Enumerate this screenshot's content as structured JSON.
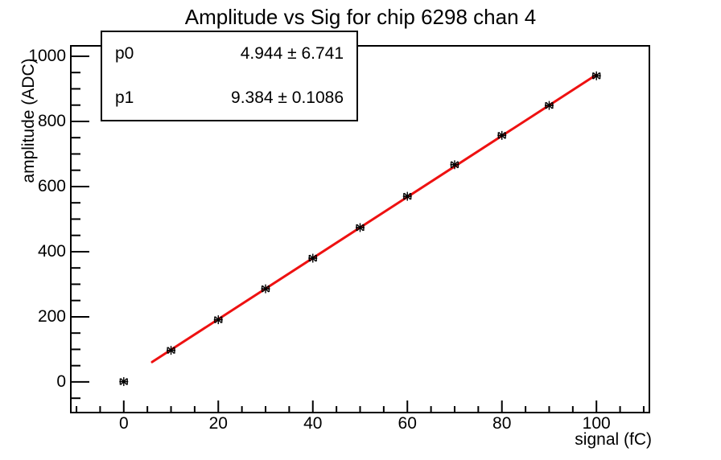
{
  "title": "Amplitude vs Sig for chip 6298 chan 4",
  "stats_box": {
    "rows": [
      {
        "label": "p0",
        "value": "4.944 ± 6.741"
      },
      {
        "label": "p1",
        "value": "9.384 ± 0.1086"
      }
    ]
  },
  "chart_data": {
    "type": "scatter",
    "title": "Amplitude vs Sig for chip 6298 chan 4",
    "xlabel": "signal (fC)",
    "ylabel": "amplitude (ADC)",
    "xlim": [
      -11.2,
      111.2
    ],
    "ylim": [
      -94,
      1032
    ],
    "x_ticks": [
      0,
      20,
      40,
      60,
      80,
      100
    ],
    "y_ticks": [
      0,
      200,
      400,
      600,
      800,
      1000
    ],
    "x_minor_step": 5,
    "y_minor_step": 50,
    "grid": "off",
    "x": [
      0,
      10,
      20,
      30,
      40,
      50,
      60,
      70,
      80,
      90,
      100
    ],
    "y": [
      1,
      97,
      191,
      286,
      380,
      474,
      570,
      667,
      757,
      849,
      940
    ],
    "x_err": 0.75,
    "marker": "asterisk",
    "marker_color": "#000000",
    "fit": {
      "p0": 4.944,
      "p1": 9.384,
      "x_start": 6,
      "x_end": 100,
      "color": "#ee1111"
    },
    "axis_color": "#000000",
    "background": "#ffffff"
  }
}
